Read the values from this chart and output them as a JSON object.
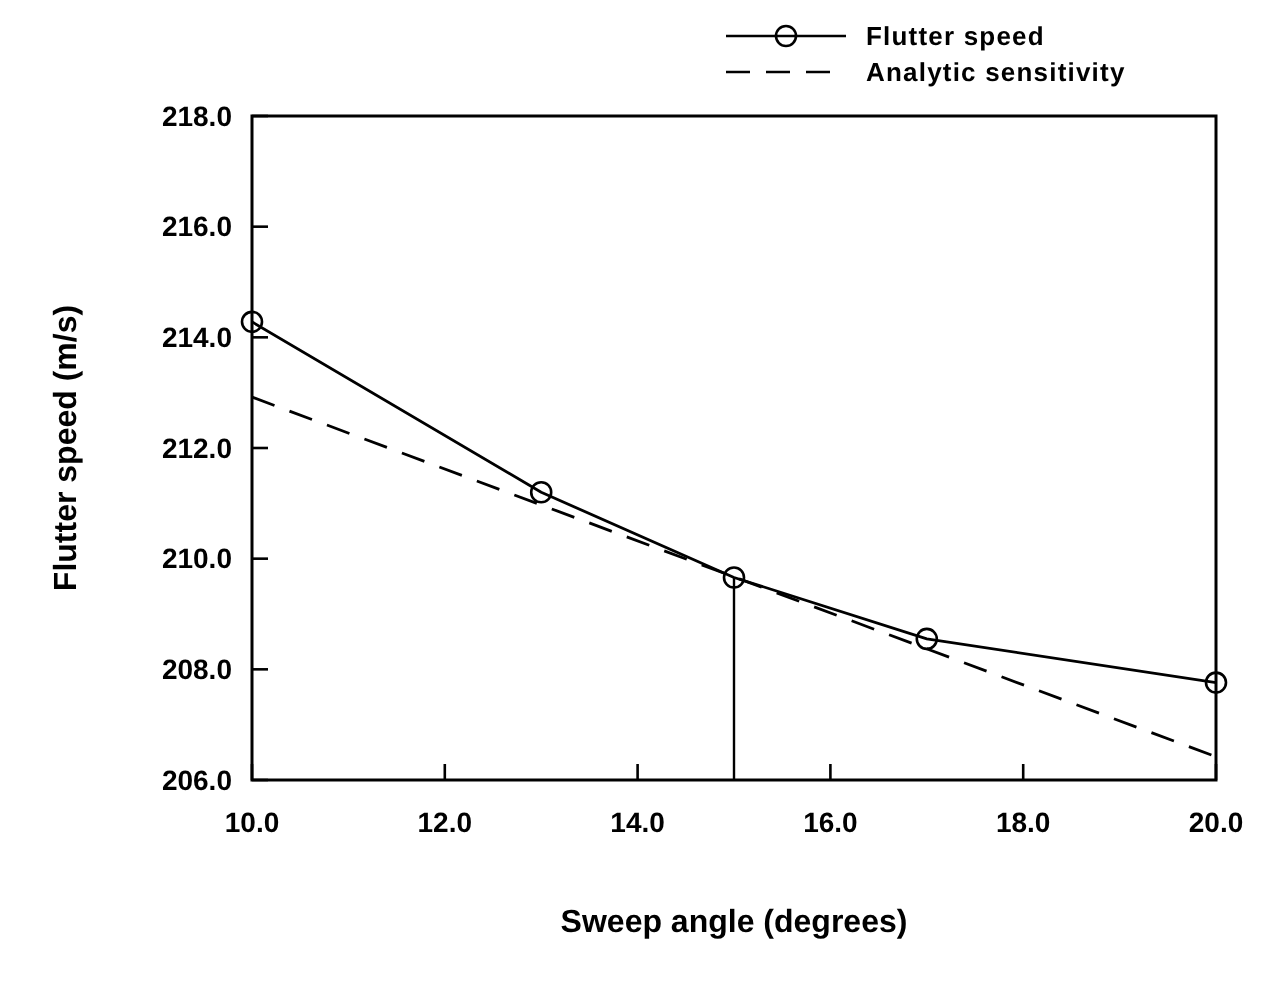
{
  "chart_data": {
    "type": "line",
    "xlabel": "Sweep angle  (degrees)",
    "ylabel": "Flutter speed  (m/s)",
    "xlim": [
      10,
      20
    ],
    "xticks": [
      {
        "value": 10,
        "label": "10.0"
      },
      {
        "value": 12,
        "label": "12.0"
      },
      {
        "value": 14,
        "label": "14.0"
      },
      {
        "value": 16,
        "label": "16.0"
      },
      {
        "value": 18,
        "label": "18.0"
      },
      {
        "value": 20,
        "label": "20.0"
      }
    ],
    "ylim": [
      206,
      218
    ],
    "yticks": [
      {
        "value": 206,
        "label": "206.0"
      },
      {
        "value": 208,
        "label": "208.0"
      },
      {
        "value": 210,
        "label": "210.0"
      },
      {
        "value": 212,
        "label": "212.0"
      },
      {
        "value": 214,
        "label": "214.0"
      },
      {
        "value": 216,
        "label": "216.0"
      },
      {
        "value": 218,
        "label": "218.0"
      }
    ],
    "grid": false,
    "legend": "top right",
    "series": [
      {
        "name": "Flutter speed",
        "color": "#000000",
        "x": [
          10,
          13,
          15,
          17,
          20
        ],
        "values": [
          214.28,
          211.2,
          209.66,
          208.55,
          207.76
        ],
        "marker": "circle",
        "line_style": "solid"
      },
      {
        "name": "Analytic sensitivity",
        "color": "#000000",
        "x": [
          10,
          20
        ],
        "values": [
          212.92,
          206.42
        ],
        "marker": "none",
        "line_style": "dashed"
      }
    ],
    "ref_lines": [
      {
        "axis": "x",
        "value": 15,
        "color": "#000000",
        "line_style": "solid"
      }
    ]
  }
}
